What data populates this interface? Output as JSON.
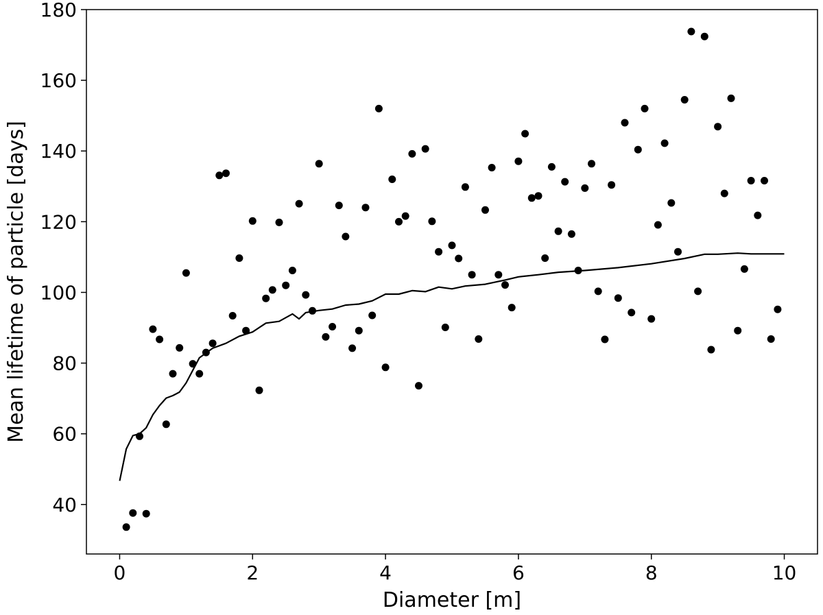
{
  "chart_data": {
    "type": "scatter",
    "title": "",
    "xlabel": "Diameter [m]",
    "ylabel": "Mean lifetime of particle [days]",
    "xlim": [
      -0.5,
      10.5
    ],
    "ylim": [
      26,
      180
    ],
    "x_ticks": [
      0,
      2,
      4,
      6,
      8,
      10
    ],
    "y_ticks": [
      40,
      60,
      80,
      100,
      120,
      140,
      160,
      180
    ],
    "grid": false,
    "legend": "none",
    "colors": {
      "points": "#000000",
      "line": "#000000",
      "axes": "#000000"
    },
    "series": [
      {
        "kind": "scatter",
        "x": [
          0.1,
          0.2,
          0.3,
          0.4,
          0.5,
          0.6,
          0.7,
          0.8,
          0.9,
          1.0,
          1.1,
          1.2,
          1.3,
          1.4,
          1.5,
          1.6,
          1.7,
          1.8,
          1.9,
          2.0,
          2.1,
          2.2,
          2.3,
          2.4,
          2.5,
          2.6,
          2.7,
          2.8,
          2.9,
          3.0,
          3.1,
          3.2,
          3.3,
          3.4,
          3.5,
          3.6,
          3.7,
          3.8,
          3.9,
          4.0,
          4.1,
          4.2,
          4.3,
          4.4,
          4.5,
          4.6,
          4.7,
          4.8,
          4.9,
          5.0,
          5.1,
          5.2,
          5.3,
          5.4,
          5.5,
          5.6,
          5.7,
          5.8,
          5.9,
          6.0,
          6.1,
          6.2,
          6.3,
          6.4,
          6.5,
          6.6,
          6.7,
          6.8,
          6.9,
          7.0,
          7.1,
          7.2,
          7.3,
          7.4,
          7.5,
          7.6,
          7.7,
          7.8,
          7.9,
          8.0,
          8.1,
          8.2,
          8.3,
          8.4,
          8.5,
          8.6,
          8.7,
          8.8,
          8.9,
          9.0,
          9.1,
          9.2,
          9.3,
          9.4,
          9.5,
          9.6,
          9.7,
          9.8,
          9.9
        ],
        "y": [
          33.6,
          37.6,
          59.3,
          37.4,
          89.6,
          86.7,
          62.7,
          77.0,
          84.3,
          105.5,
          79.8,
          77.0,
          83.0,
          85.6,
          133.1,
          133.7,
          93.4,
          109.7,
          89.2,
          120.2,
          72.3,
          98.3,
          100.7,
          119.8,
          102.0,
          106.2,
          125.1,
          99.3,
          94.8,
          136.4,
          87.4,
          90.3,
          124.6,
          115.8,
          84.2,
          89.2,
          124.0,
          93.5,
          152.0,
          78.8,
          132.0,
          120.0,
          121.6,
          139.2,
          73.6,
          140.6,
          120.1,
          111.5,
          90.1,
          113.3,
          109.6,
          129.8,
          105.0,
          86.8,
          123.3,
          135.3,
          105.0,
          102.1,
          95.7,
          137.1,
          144.9,
          126.7,
          127.3,
          109.7,
          135.5,
          117.3,
          131.3,
          116.5,
          106.2,
          129.5,
          136.4,
          100.3,
          86.7,
          130.4,
          98.4,
          148.0,
          94.3,
          140.4,
          152.0,
          92.5,
          119.1,
          142.2,
          125.3,
          111.5,
          154.5,
          173.8,
          100.3,
          172.4,
          83.8,
          146.9,
          128.0,
          154.9,
          89.2,
          106.6,
          131.6,
          121.8,
          131.6,
          86.8,
          95.2
        ]
      },
      {
        "kind": "line",
        "x": [
          0.0,
          0.1,
          0.2,
          0.3,
          0.4,
          0.5,
          0.6,
          0.7,
          0.8,
          0.9,
          1.0,
          1.2,
          1.4,
          1.6,
          1.8,
          2.0,
          2.2,
          2.4,
          2.6,
          2.7,
          2.8,
          3.0,
          3.2,
          3.4,
          3.6,
          3.8,
          4.0,
          4.2,
          4.4,
          4.6,
          4.8,
          5.0,
          5.2,
          5.5,
          5.8,
          6.0,
          6.3,
          6.6,
          7.0,
          7.5,
          8.0,
          8.5,
          8.8,
          9.0,
          9.3,
          9.5,
          10.0
        ],
        "y": [
          46.7,
          55.7,
          59.5,
          60.0,
          61.7,
          65.4,
          68.0,
          70.1,
          70.8,
          71.8,
          74.4,
          81.5,
          84.2,
          85.6,
          87.6,
          88.8,
          91.3,
          91.8,
          93.9,
          92.5,
          94.3,
          94.9,
          95.3,
          96.4,
          96.7,
          97.6,
          99.5,
          99.5,
          100.5,
          100.2,
          101.5,
          101.0,
          101.8,
          102.3,
          103.5,
          104.4,
          105.0,
          105.7,
          106.2,
          107.0,
          108.1,
          109.6,
          110.8,
          110.8,
          111.1,
          110.9,
          110.9
        ]
      }
    ]
  }
}
